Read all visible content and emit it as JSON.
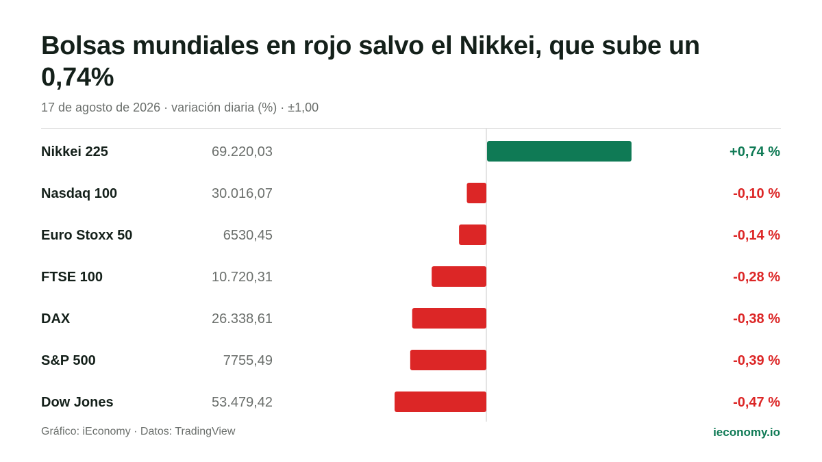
{
  "header": {
    "title": "Bolsas mundiales en rojo salvo el Nikkei, que sube un 0,74%",
    "subtitle": "17 de agosto de 2026 · variación diaria (%) · ±1,00"
  },
  "footer": {
    "source": "Gráfico: iEconomy · Datos: TradingView",
    "brand": "ieconomy.io"
  },
  "colors": {
    "positive": "#0f7a55",
    "negative": "#dc2626",
    "axis": "#dcdcdc"
  },
  "chart_data": {
    "type": "bar",
    "orientation": "horizontal",
    "xlim": [
      -1,
      1
    ],
    "rows": [
      {
        "name": "Nikkei 225",
        "level": "69.220,03",
        "value": 0.74,
        "label": "+0,74 %"
      },
      {
        "name": "Nasdaq 100",
        "level": "30.016,07",
        "value": -0.1,
        "label": "-0,10 %"
      },
      {
        "name": "Euro Stoxx 50",
        "level": "6530,45",
        "value": -0.14,
        "label": "-0,14 %"
      },
      {
        "name": "FTSE 100",
        "level": "10.720,31",
        "value": -0.28,
        "label": "-0,28 %"
      },
      {
        "name": "DAX",
        "level": "26.338,61",
        "value": -0.38,
        "label": "-0,38 %"
      },
      {
        "name": "S&P 500",
        "level": "7755,49",
        "value": -0.39,
        "label": "-0,39 %"
      },
      {
        "name": "Dow Jones",
        "level": "53.479,42",
        "value": -0.47,
        "label": "-0,47 %"
      }
    ]
  }
}
